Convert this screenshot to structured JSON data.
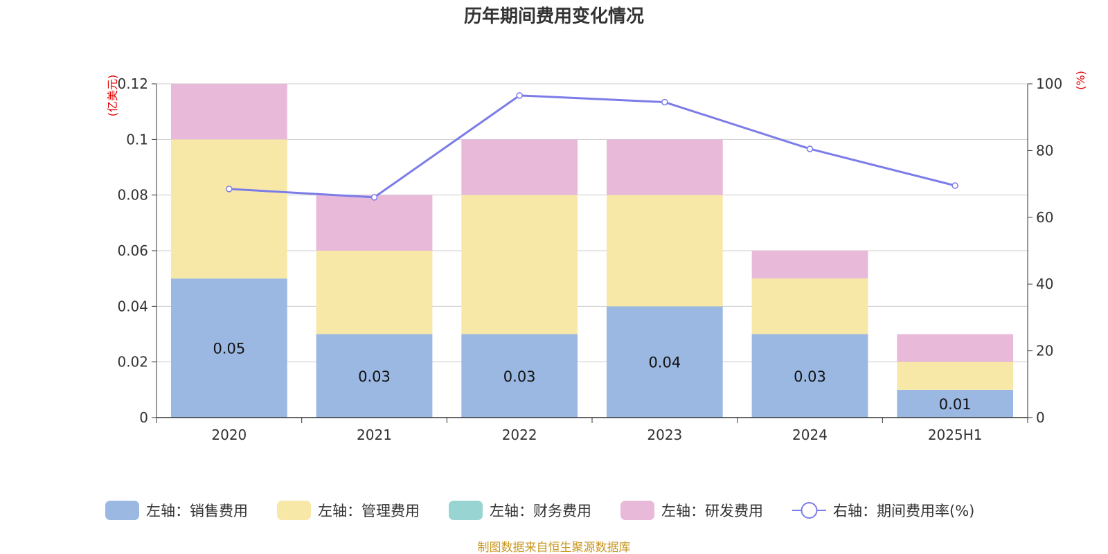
{
  "chart_data": {
    "type": "bar",
    "title": "历年期间费用变化情况",
    "categories": [
      "2020",
      "2021",
      "2022",
      "2023",
      "2024",
      "2025H1"
    ],
    "left_axis": {
      "unit_label": "(亿美元)",
      "ylim": [
        0,
        0.12
      ],
      "ticks": [
        "0",
        "0.02",
        "0.04",
        "0.06",
        "0.08",
        "0.1",
        "0.12"
      ]
    },
    "right_axis": {
      "unit_label": "(%)",
      "ylim": [
        0,
        100
      ],
      "ticks": [
        "0",
        "20",
        "40",
        "60",
        "80",
        "100"
      ]
    },
    "series": [
      {
        "name": "左轴：销售费用",
        "type": "bar",
        "axis": "left",
        "color": "#9bb8e2",
        "values": [
          0.05,
          0.03,
          0.03,
          0.04,
          0.03,
          0.01
        ],
        "labels": [
          "0.05",
          "0.03",
          "0.03",
          "0.04",
          "0.03",
          "0.01"
        ]
      },
      {
        "name": "左轴：管理费用",
        "type": "bar",
        "axis": "left",
        "color": "#f8e8a8",
        "values": [
          0.05,
          0.03,
          0.05,
          0.04,
          0.02,
          0.01
        ]
      },
      {
        "name": "左轴：财务费用",
        "type": "bar",
        "axis": "left",
        "color": "#98d4d2",
        "values": [
          0,
          0,
          0,
          0,
          0,
          0
        ]
      },
      {
        "name": "左轴：研发费用",
        "type": "bar",
        "axis": "left",
        "color": "#e8b9d9",
        "values": [
          0.02,
          0.02,
          0.02,
          0.02,
          0.01,
          0.01
        ]
      },
      {
        "name": "右轴：期间费用率(%)",
        "type": "line",
        "axis": "right",
        "color": "#7b7ce8",
        "values": [
          68.5,
          66,
          96.5,
          94.5,
          80.5,
          69.5
        ]
      }
    ],
    "grid": true,
    "legend_position": "bottom",
    "source": "制图数据来自恒生聚源数据库"
  }
}
